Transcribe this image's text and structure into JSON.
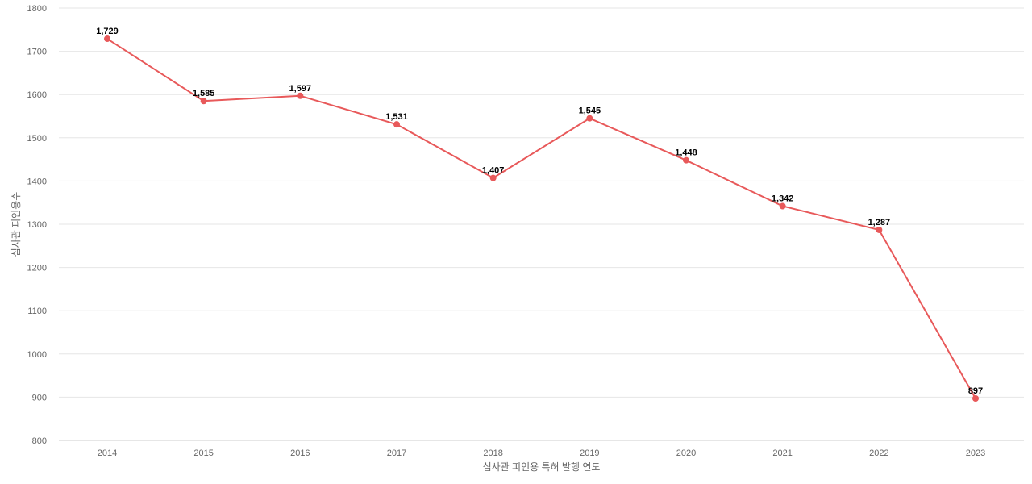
{
  "chart_data": {
    "type": "line",
    "title": "",
    "xlabel": "심사관 피인용 특허 발행 연도",
    "ylabel": "심사관 피인용수",
    "categories": [
      "2014",
      "2015",
      "2016",
      "2017",
      "2018",
      "2019",
      "2020",
      "2021",
      "2022",
      "2023"
    ],
    "series": [
      {
        "values": [
          1729,
          1585,
          1597,
          1531,
          1407,
          1545,
          1448,
          1342,
          1287,
          897
        ],
        "labels": [
          "1,729",
          "1,585",
          "1,597",
          "1,531",
          "1,407",
          "1,545",
          "1,448",
          "1,342",
          "1,287",
          "897"
        ],
        "color": "#e8595a"
      }
    ],
    "ylim": [
      800,
      1800
    ],
    "yticks": [
      "800",
      "900",
      "1000",
      "1100",
      "1200",
      "1300",
      "1400",
      "1500",
      "1600",
      "1700",
      "1800"
    ],
    "grid": true,
    "legend": "none"
  }
}
